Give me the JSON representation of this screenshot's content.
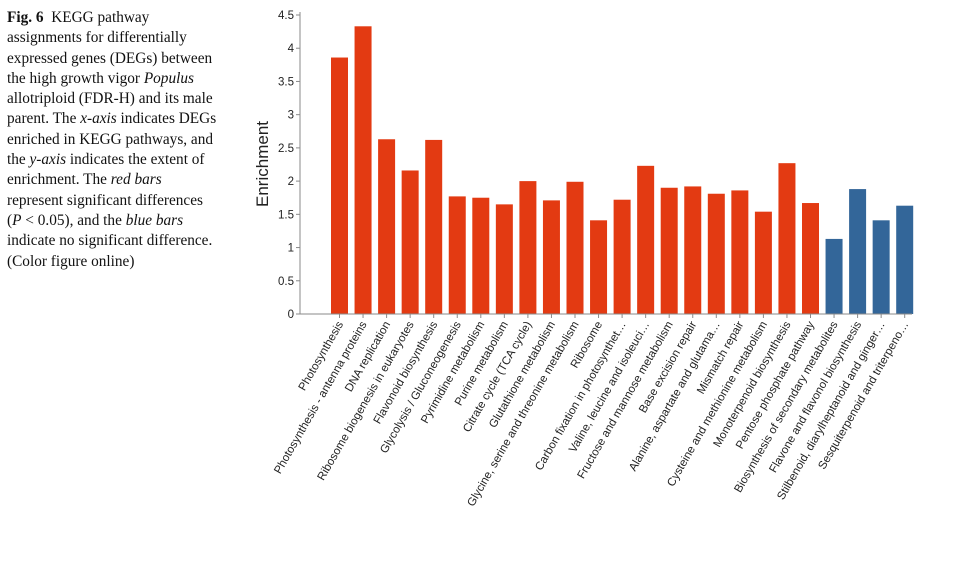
{
  "caption": {
    "fig_label": "Fig. 6",
    "p1": "KEGG pathway assignments for differentially expressed genes (DEGs) between the high growth vigor ",
    "p2": "Populus",
    "p3": " allotriploid (FDR-H) and its male parent. The ",
    "p4": "x-axis",
    "p5": " indicates DEGs enriched in KEGG pathways, and the ",
    "p6": "y-axis",
    "p7": " indicates the extent of enrichment. The ",
    "p8": "red bars",
    "p9": " represent significant differences (",
    "p10": "P",
    "p11": " < 0.05), and the ",
    "p12": "blue bars",
    "p13": " indicate no significant difference. (Color figure online)"
  },
  "colors": {
    "significant": "#e33a12",
    "not_significant": "#336699",
    "axis": "#8a8a8a"
  },
  "chart_data": {
    "type": "bar",
    "title": "",
    "xlabel": "",
    "ylabel": "Enrichment",
    "ylim": [
      0,
      4.5
    ],
    "yticks": [
      "0",
      "0.5",
      "1",
      "1.5",
      "2",
      "2.5",
      "3",
      "3.5",
      "4",
      "4.5"
    ],
    "categories": [
      "Photosynthesis",
      "Photosynthesis - antenna proteins",
      "DNA replication",
      "Ribosome biogenesis in eukaryotes",
      "Flavonoid biosynthesis",
      "Glycolysis / Gluconeogenesis",
      "Pyrimidine metabolism",
      "Purine metabolism",
      "Citrate cycle (TCA cycle)",
      "Glutathione metabolism",
      "Glycine, serine and threonine metabolism",
      "Ribosome",
      "Carbon fixation in photosynthet…",
      "Valine, leucine and isoleuci…",
      "Fructose and mannose metabolism",
      "Base excision repair",
      "Alanine, aspartate and glutama…",
      "Mismatch repair",
      "Cysteine and methionine metabolism",
      "Monoterpenoid biosynthesis",
      "Pentose phosphate pathway",
      "Biosynthesis of secondary metabolites",
      "Flavone and flavonol biosynthesis",
      "Stilbenoid, diarylheptanoid and ginger…",
      "Sesquiterpenoid and triterpeno…"
    ],
    "values": [
      3.86,
      4.33,
      2.63,
      2.16,
      2.62,
      1.77,
      1.75,
      1.65,
      2.0,
      1.71,
      1.99,
      1.41,
      1.72,
      2.23,
      1.9,
      1.92,
      1.81,
      1.86,
      1.54,
      2.27,
      1.67,
      1.13,
      1.88,
      1.41,
      1.63
    ],
    "significant": [
      true,
      true,
      true,
      true,
      true,
      true,
      true,
      true,
      true,
      true,
      true,
      true,
      true,
      true,
      true,
      true,
      true,
      true,
      true,
      true,
      true,
      false,
      false,
      false,
      false
    ]
  }
}
